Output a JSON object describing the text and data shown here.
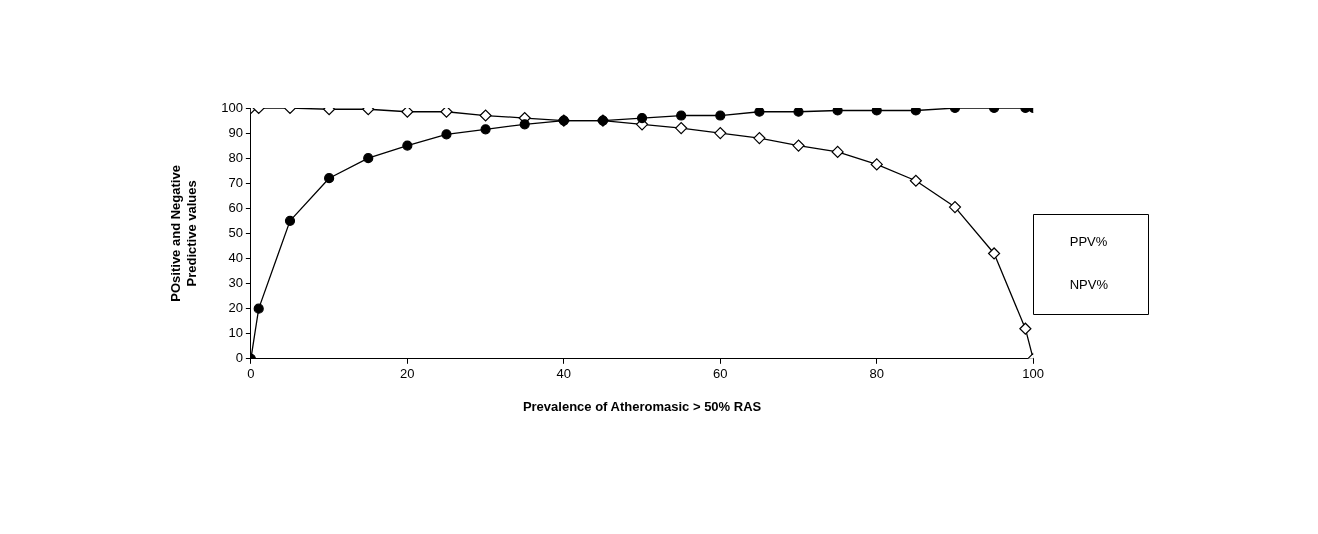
{
  "chart_data": {
    "type": "line",
    "xlabel": "Prevalence of Atheromasic > 50% RAS",
    "ylabel": "POsitive and Negative\nPredictive values",
    "x": [
      0,
      1,
      5,
      10,
      15,
      20,
      25,
      30,
      35,
      40,
      45,
      50,
      55,
      60,
      65,
      70,
      75,
      80,
      85,
      90,
      95,
      99,
      100
    ],
    "series": [
      {
        "name": "PPV%",
        "color": "#000000",
        "marker": "circle",
        "values": [
          0,
          20,
          55,
          72,
          80,
          85,
          89.5,
          91.5,
          93.5,
          95,
          95,
          96,
          97,
          97,
          98.5,
          98.5,
          99,
          99,
          99,
          100,
          100,
          100,
          100
        ]
      },
      {
        "name": "NPV%",
        "color": "#000000",
        "marker": "diamond",
        "values": [
          100,
          100,
          100,
          99.5,
          99.5,
          98.5,
          98.5,
          97,
          96,
          95,
          95,
          93.5,
          92,
          90,
          88,
          85,
          82.5,
          77.5,
          71,
          60.5,
          42,
          12,
          0
        ]
      }
    ],
    "xlim": [
      0,
      100
    ],
    "xticks": [
      0,
      20,
      40,
      60,
      80,
      100
    ],
    "ylim": [
      0,
      100
    ],
    "yticks": [
      0,
      10,
      20,
      30,
      40,
      50,
      60,
      70,
      80,
      90,
      100
    ],
    "grid": false,
    "legend": "right",
    "line_style": "solid"
  }
}
